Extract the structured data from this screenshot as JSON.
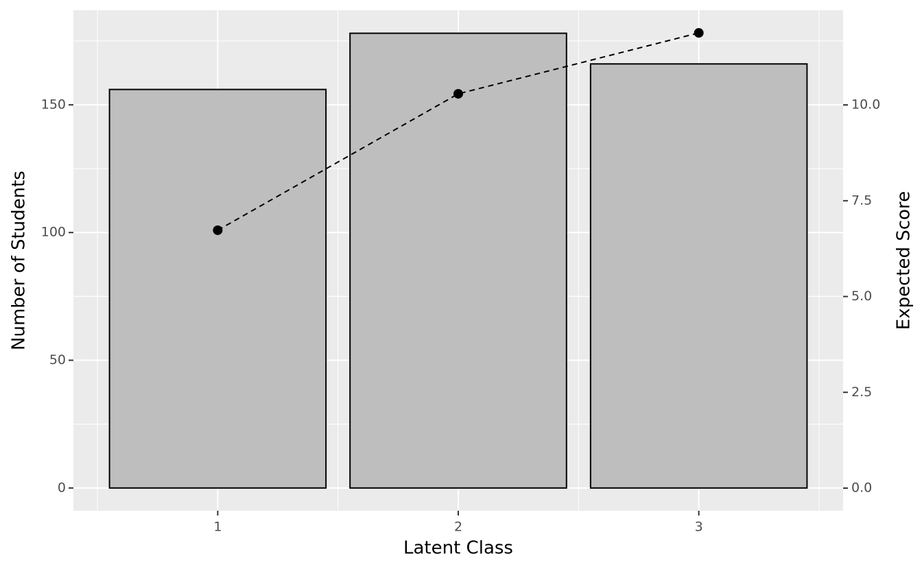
{
  "chart_data": {
    "type": "bar",
    "x_label": "Latent Class",
    "y_label": "Number of Students",
    "y2_label": "Expected Score",
    "categories": [
      "1",
      "2",
      "3"
    ],
    "series": [
      {
        "type": "bar",
        "values": [
          156,
          178,
          166
        ],
        "color": "#bebebe"
      },
      {
        "type": "line",
        "axis": "y2",
        "values": [
          6.73,
          10.29,
          11.88
        ],
        "color": "#000000"
      }
    ],
    "ylim": [
      -8.9,
      187
    ],
    "yticks": [
      0,
      50,
      100,
      150
    ],
    "y2lim": [
      -0.59,
      12.47
    ],
    "y2ticks": [
      {
        "value": 0,
        "label": "0.0"
      },
      {
        "value": 2.5,
        "label": "2.5"
      },
      {
        "value": 5,
        "label": "5.0"
      },
      {
        "value": 7.5,
        "label": "7.5"
      },
      {
        "value": 10,
        "label": "10.0"
      }
    ],
    "grid": true
  }
}
